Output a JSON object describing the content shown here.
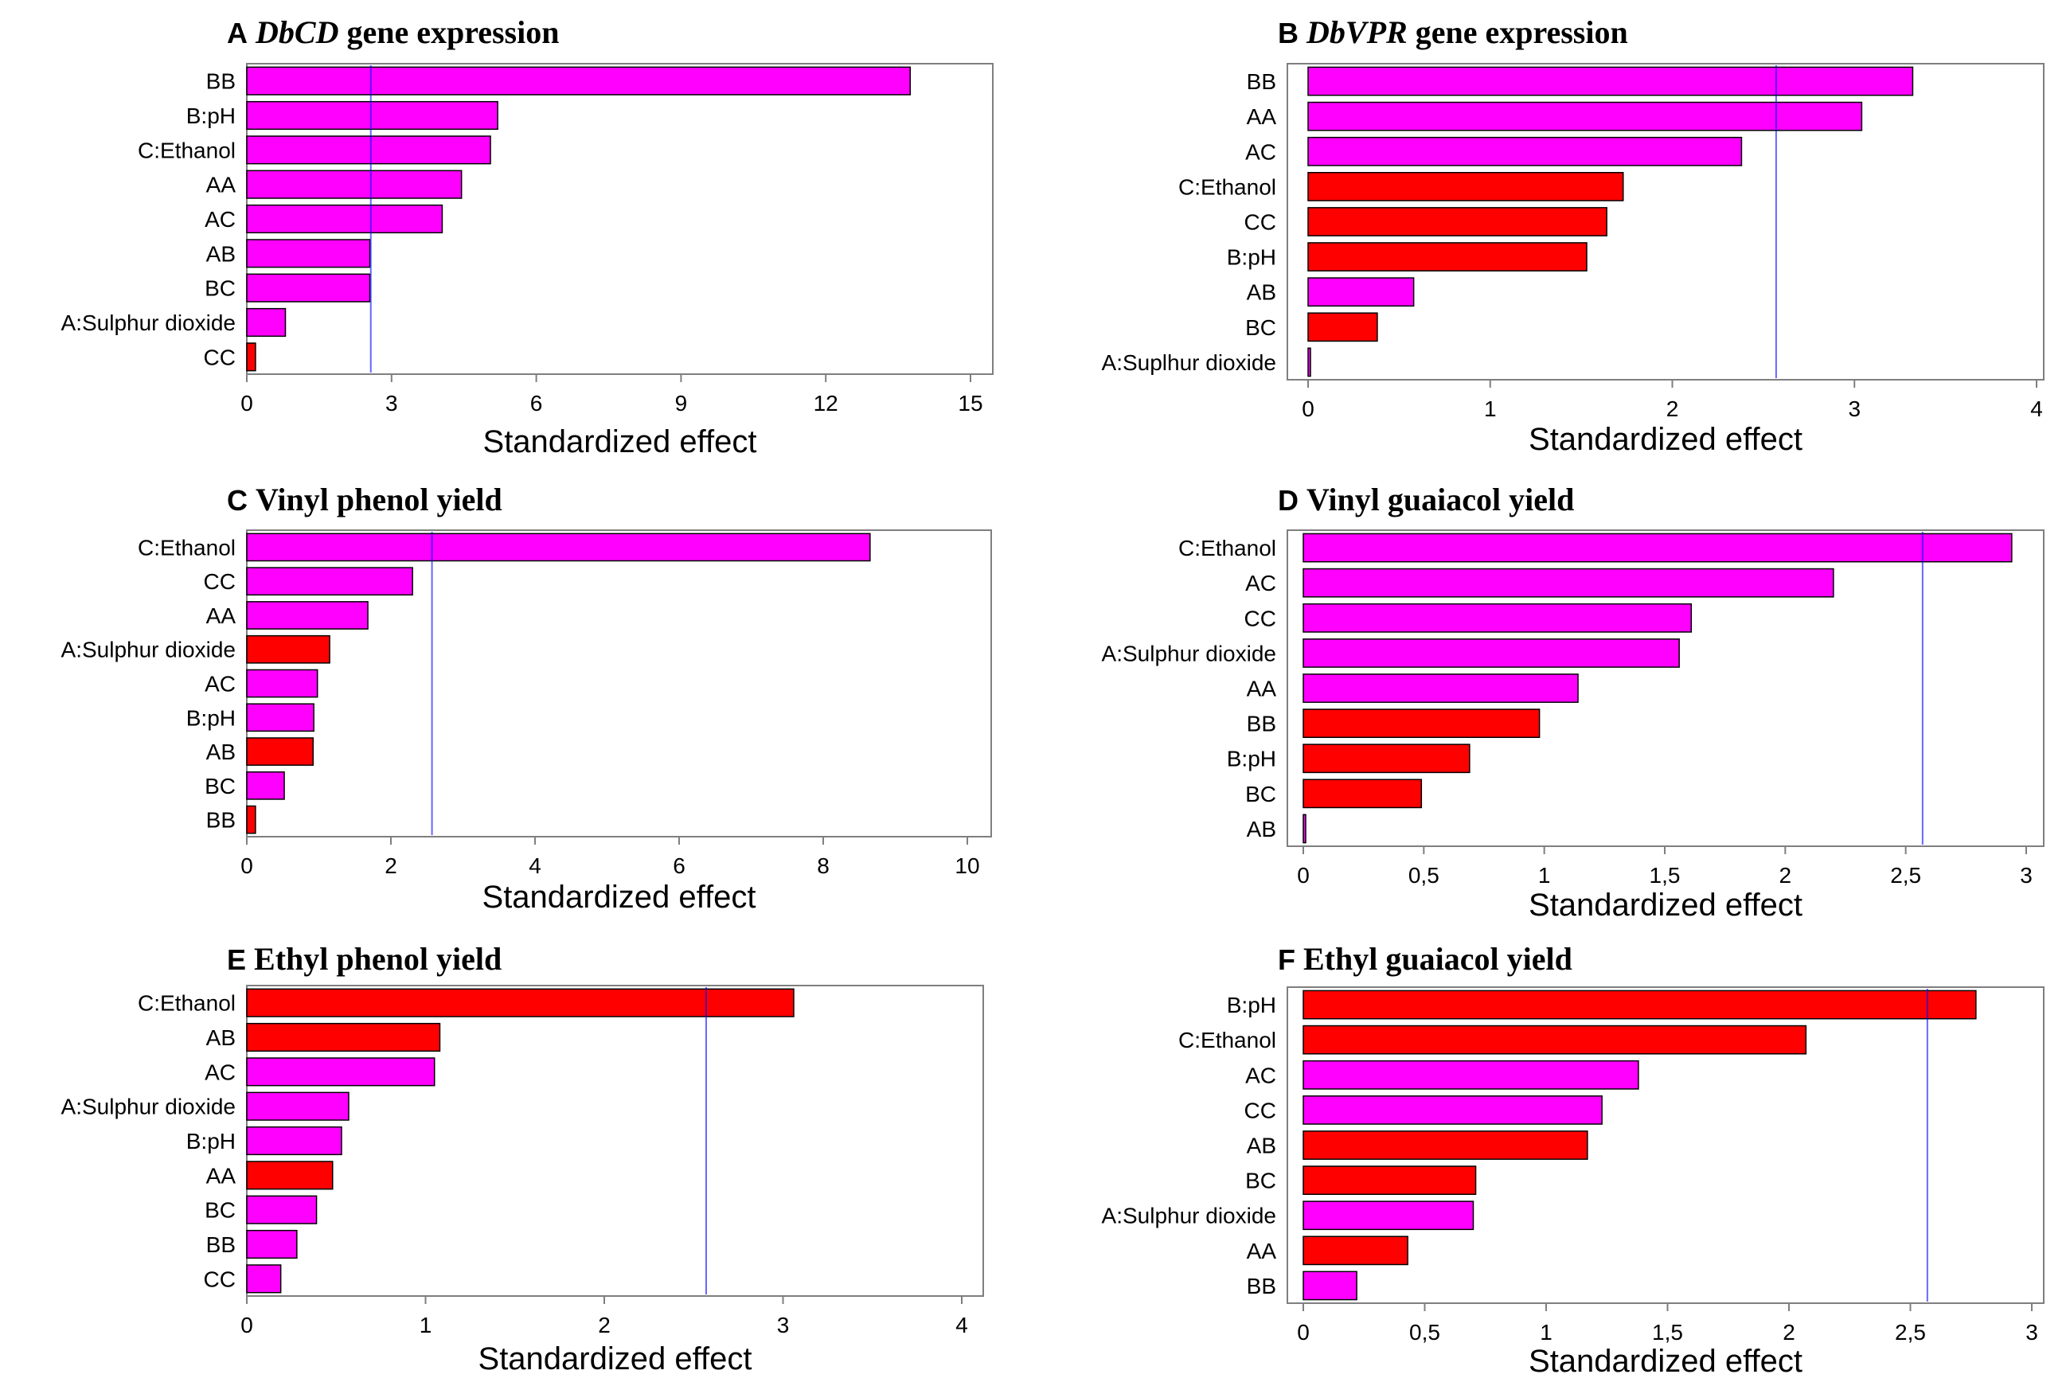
{
  "figure": {
    "colors": {
      "positive": "#ff00ff",
      "negative": "#ff0000",
      "bar_stroke": "#000000",
      "reference_line": "#0000ff",
      "axis": "#7f7f7f",
      "text": "#000000"
    }
  },
  "chart_data": [
    {
      "type": "bar",
      "orientation": "horizontal",
      "panel": "A",
      "title_italic": "DbCD",
      "title_rest": " gene expression",
      "xlabel": "Standardized effect",
      "xlim": [
        0,
        15
      ],
      "xticks": [
        0,
        3,
        6,
        9,
        12,
        15
      ],
      "tick_labels": [
        "0",
        "3",
        "6",
        "9",
        "12",
        "15"
      ],
      "reference_line": 2.57,
      "categories": [
        "BB",
        "B:pH",
        "C:Ethanol",
        "AA",
        "AC",
        "AB",
        "BC",
        "A:Sulphur dioxide",
        "CC"
      ],
      "values": [
        13.75,
        5.2,
        5.05,
        4.45,
        4.05,
        2.55,
        2.55,
        0.8,
        0.18
      ],
      "sign": [
        "positive",
        "positive",
        "positive",
        "positive",
        "positive",
        "positive",
        "positive",
        "positive",
        "negative"
      ]
    },
    {
      "type": "bar",
      "orientation": "horizontal",
      "panel": "B",
      "title_italic": "DbVPR",
      "title_rest": " gene expression",
      "xlabel": "Standardized effect",
      "xlim": [
        0,
        4
      ],
      "xticks": [
        0,
        1,
        2,
        3,
        4
      ],
      "tick_labels": [
        "0",
        "1",
        "2",
        "3",
        "4"
      ],
      "reference_line": 2.57,
      "categories": [
        "BB",
        "AA",
        "AC",
        "C:Ethanol",
        "CC",
        "B:pH",
        "AB",
        "BC",
        "A:Suplhur dioxide"
      ],
      "values": [
        3.32,
        3.04,
        2.38,
        1.73,
        1.64,
        1.53,
        0.58,
        0.38,
        0.01
      ],
      "sign": [
        "positive",
        "positive",
        "positive",
        "negative",
        "negative",
        "negative",
        "positive",
        "negative",
        "positive"
      ]
    },
    {
      "type": "bar",
      "orientation": "horizontal",
      "panel": "C",
      "title_italic": "",
      "title_rest": "Vinyl phenol yield",
      "xlabel": "Standardized effect",
      "xlim": [
        0,
        10
      ],
      "xticks": [
        0,
        2,
        4,
        6,
        8,
        10
      ],
      "tick_labels": [
        "0",
        "2",
        "4",
        "6",
        "8",
        "10"
      ],
      "reference_line": 2.57,
      "categories": [
        "C:Ethanol",
        "CC",
        "AA",
        "A:Sulphur dioxide",
        "AC",
        "B:pH",
        "AB",
        "BC",
        "BB"
      ],
      "values": [
        8.65,
        2.3,
        1.68,
        1.15,
        0.98,
        0.93,
        0.92,
        0.52,
        0.12
      ],
      "sign": [
        "positive",
        "positive",
        "positive",
        "negative",
        "positive",
        "positive",
        "negative",
        "positive",
        "negative"
      ]
    },
    {
      "type": "bar",
      "orientation": "horizontal",
      "panel": "D",
      "title_italic": "",
      "title_rest": "Vinyl guaiacol yield",
      "xlabel": "Standardized effect",
      "xlim": [
        0,
        3
      ],
      "xticks": [
        0,
        0.5,
        1,
        1.5,
        2,
        2.5,
        3
      ],
      "tick_labels": [
        "0",
        "0,5",
        "1",
        "1,5",
        "2",
        "2,5",
        "3"
      ],
      "reference_line": 2.57,
      "categories": [
        "C:Ethanol",
        "AC",
        "CC",
        "A:Sulphur dioxide",
        "AA",
        "BB",
        "B:pH",
        "BC",
        "AB"
      ],
      "values": [
        2.94,
        2.2,
        1.61,
        1.56,
        1.14,
        0.98,
        0.69,
        0.49,
        0.005
      ],
      "sign": [
        "positive",
        "positive",
        "positive",
        "positive",
        "positive",
        "negative",
        "negative",
        "negative",
        "positive"
      ]
    },
    {
      "type": "bar",
      "orientation": "horizontal",
      "panel": "E",
      "title_italic": "",
      "title_rest": "Ethyl phenol yield",
      "xlabel": "Standardized effect",
      "xlim": [
        0,
        4
      ],
      "xticks": [
        0,
        1,
        2,
        3,
        4
      ],
      "tick_labels": [
        "0",
        "1",
        "2",
        "3",
        "4"
      ],
      "reference_line": 2.57,
      "categories": [
        "C:Ethanol",
        "AB",
        "AC",
        "A:Sulphur dioxide",
        "B:pH",
        "AA",
        "BC",
        "BB",
        "CC"
      ],
      "values": [
        3.06,
        1.08,
        1.05,
        0.57,
        0.53,
        0.48,
        0.39,
        0.28,
        0.19
      ],
      "sign": [
        "negative",
        "negative",
        "positive",
        "positive",
        "positive",
        "negative",
        "positive",
        "positive",
        "positive"
      ]
    },
    {
      "type": "bar",
      "orientation": "horizontal",
      "panel": "F",
      "title_italic": "",
      "title_rest": "Ethyl guaiacol yield",
      "xlabel": "Standardized effect",
      "xlim": [
        0,
        3
      ],
      "xticks": [
        0,
        0.5,
        1,
        1.5,
        2,
        2.5,
        3
      ],
      "tick_labels": [
        "0",
        "0,5",
        "1",
        "1,5",
        "2",
        "2,5",
        "3"
      ],
      "reference_line": 2.57,
      "categories": [
        "B:pH",
        "C:Ethanol",
        "AC",
        "CC",
        "AB",
        "BC",
        "A:Sulphur dioxide",
        "AA",
        "BB"
      ],
      "values": [
        2.77,
        2.07,
        1.38,
        1.23,
        1.17,
        0.71,
        0.7,
        0.43,
        0.22
      ],
      "sign": [
        "negative",
        "negative",
        "positive",
        "positive",
        "negative",
        "negative",
        "positive",
        "negative",
        "positive"
      ]
    }
  ]
}
